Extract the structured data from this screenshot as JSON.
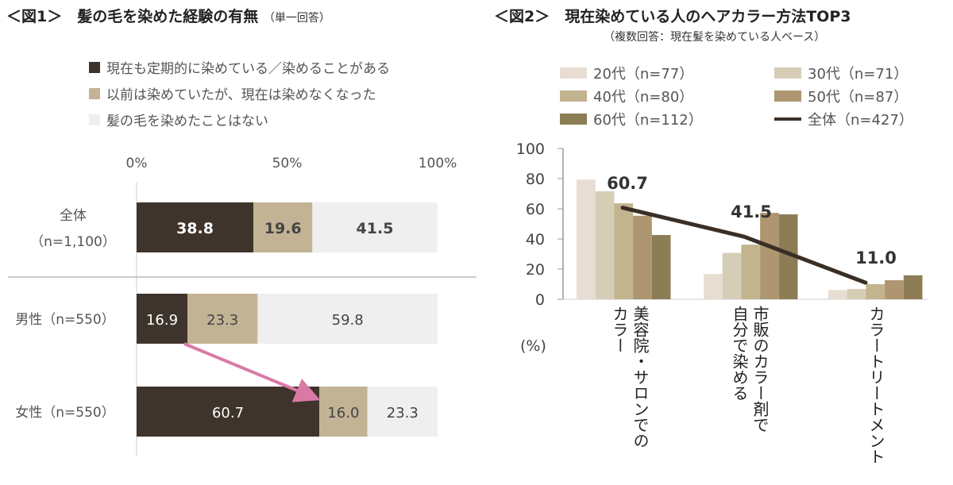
{
  "chart_data": [
    {
      "type": "bar",
      "orientation": "horizontal-stacked",
      "title": "＜図1＞　髪の毛を染めた経験の有無",
      "subtitle": "（単一回答）",
      "xticks": [
        "0%",
        "50%",
        "100%"
      ],
      "xlim": [
        0,
        100
      ],
      "categories": [
        {
          "label": "全体",
          "n": "（n=1,100）"
        },
        {
          "label": "男性（n=550）",
          "n": ""
        },
        {
          "label": "女性（n=550）",
          "n": ""
        }
      ],
      "series": [
        {
          "name": "現在も定期的に染めている／染めることがある",
          "color": "#3e342b",
          "values": [
            38.8,
            16.9,
            60.7
          ],
          "labels": [
            "38.8",
            "16.9",
            "60.7"
          ]
        },
        {
          "name": "以前は染めていたが、現在は染めなくなった",
          "color": "#c2b394",
          "values": [
            19.6,
            23.3,
            16.0
          ],
          "labels": [
            "19.6",
            "23.3",
            "16.0"
          ]
        },
        {
          "name": "髪の毛を染めたことはない",
          "color": "#efefef",
          "values": [
            41.5,
            59.8,
            23.3
          ],
          "labels": [
            "41.5",
            "59.8",
            "23.3"
          ]
        }
      ],
      "annotation": "arrow from 男性 to 女性 (pink)",
      "arrow_color": "#d97aa6"
    },
    {
      "type": "bar+line",
      "title": "＜図2＞　現在染めている人のヘアカラー方法TOP3",
      "subtitle": "（複数回答：現在髪を染めている人ベース）",
      "ylabel": "(%)",
      "ylim": [
        0,
        100
      ],
      "yticks": [
        "0",
        "20",
        "40",
        "60",
        "80",
        "100"
      ],
      "categories": [
        [
          "美容院・サロンでの",
          "カラー"
        ],
        [
          "市販のカラー剤で",
          "自分で染める"
        ],
        [
          "カラートリートメント"
        ]
      ],
      "series": [
        {
          "name": "20代（n=77）",
          "color": "#e8ddd2",
          "values": [
            79.3,
            16.8,
            6.1
          ]
        },
        {
          "name": "30代（n=71）",
          "color": "#d6cdb6",
          "values": [
            71.6,
            30.7,
            6.8
          ]
        },
        {
          "name": "40代（n=80）",
          "color": "#c1b48e",
          "values": [
            63.6,
            36.2,
            10.0
          ]
        },
        {
          "name": "50代（n=87）",
          "color": "#ad9670",
          "values": [
            55.4,
            57.3,
            12.6
          ]
        },
        {
          "name": "60代（n=112）",
          "color": "#8c7d55",
          "values": [
            42.6,
            56.3,
            15.9
          ]
        }
      ],
      "line": {
        "name": "全体（n=427）",
        "color": "#3a2f26",
        "values": [
          60.7,
          41.5,
          11.0
        ],
        "labels": [
          "60.7",
          "41.5",
          "11.0"
        ]
      }
    }
  ]
}
